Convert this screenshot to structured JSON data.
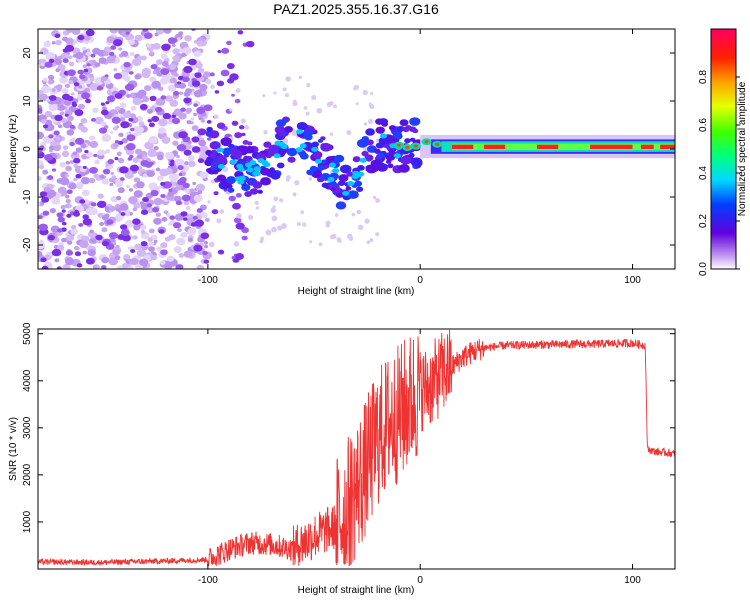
{
  "title": "PAZ1.2025.355.16.37.G16",
  "chart_data": [
    {
      "type": "heatmap",
      "name": "spectrogram",
      "xlabel": "Height of straight line (km)",
      "ylabel": "Frequency (Hz)",
      "xlim": [
        -180,
        120
      ],
      "ylim": [
        -25,
        25
      ],
      "x_ticks": [
        -100,
        0,
        100
      ],
      "y_ticks": [
        -20,
        -10,
        0,
        10,
        20
      ],
      "colorbar": {
        "label": "Normalized spectral amplitude",
        "range": [
          0.0,
          1.0
        ],
        "ticks": [
          0.0,
          0.2,
          0.4,
          0.6,
          0.8
        ]
      },
      "ridge": [
        {
          "x": -100,
          "y": 0
        },
        {
          "x": -85,
          "y": -5
        },
        {
          "x": -75,
          "y": -4
        },
        {
          "x": -60,
          "y": 3
        },
        {
          "x": -45,
          "y": -3
        },
        {
          "x": -35,
          "y": -8
        },
        {
          "x": -20,
          "y": 1
        },
        {
          "x": -10,
          "y": 0.5
        },
        {
          "x": 0,
          "y": 1
        },
        {
          "x": 10,
          "y": 0.5
        },
        {
          "x": 50,
          "y": 0.5
        },
        {
          "x": 100,
          "y": 0.8
        },
        {
          "x": 120,
          "y": 0.8
        }
      ],
      "noise_region": {
        "x_from": -180,
        "x_to": -100,
        "y_from": -25,
        "y_to": 25
      }
    },
    {
      "type": "line",
      "name": "snr",
      "xlabel": "Height of straight line (km)",
      "ylabel": "SNR (10 * v/v)",
      "xlim": [
        -180,
        120
      ],
      "ylim": [
        0,
        5100
      ],
      "x_ticks": [
        -100,
        0,
        100
      ],
      "y_ticks": [
        1000,
        2000,
        3000,
        4000,
        5000
      ],
      "color": "#ee3333",
      "series": [
        {
          "name": "SNR",
          "x": [
            -180,
            -150,
            -120,
            -100,
            -90,
            -80,
            -70,
            -60,
            -50,
            -40,
            -35,
            -30,
            -25,
            -20,
            -15,
            -10,
            -5,
            0,
            5,
            10,
            15,
            20,
            25,
            30,
            40,
            60,
            80,
            100,
            106,
            107,
            110,
            120
          ],
          "y": [
            150,
            140,
            170,
            200,
            420,
            560,
            520,
            420,
            700,
            900,
            1250,
            1700,
            2200,
            2800,
            3100,
            3300,
            3550,
            3800,
            3900,
            4150,
            4300,
            4500,
            4620,
            4700,
            4750,
            4770,
            4780,
            4800,
            4750,
            2550,
            2500,
            2450
          ]
        }
      ]
    }
  ]
}
